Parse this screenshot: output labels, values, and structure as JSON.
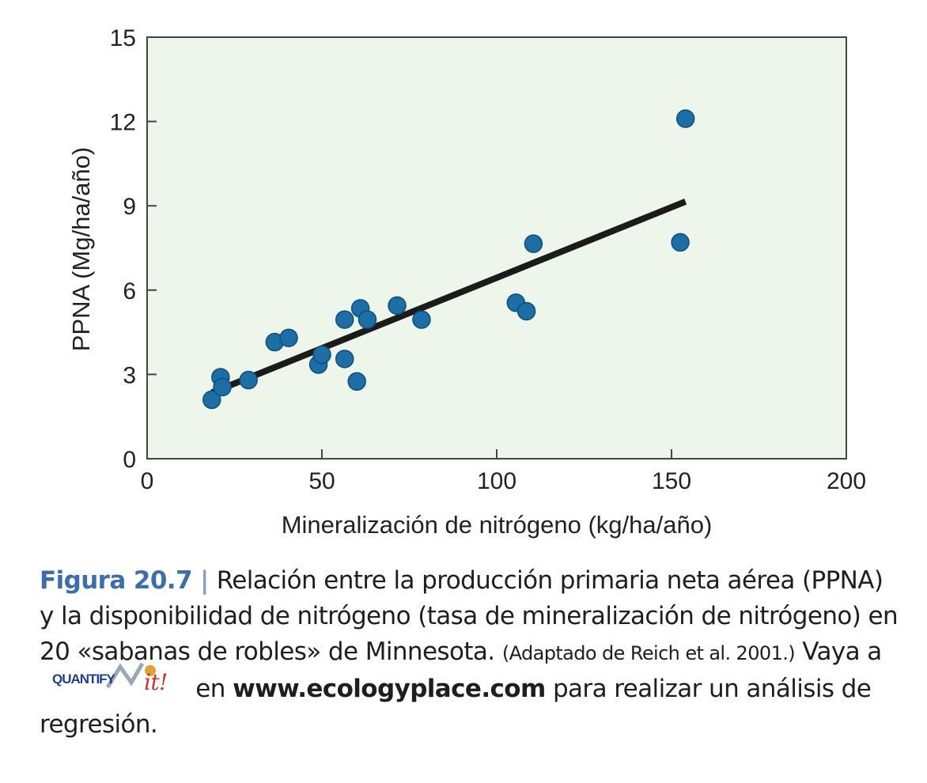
{
  "chart_data": {
    "type": "scatter",
    "xlabel": "Mineralización de nitrógeno (kg/ha/año)",
    "ylabel": "PPNA (Mg/ha/año)",
    "xlim": [
      0,
      200
    ],
    "ylim": [
      0,
      15
    ],
    "xticks": [
      0,
      50,
      100,
      150,
      200
    ],
    "yticks": [
      0,
      3,
      6,
      9,
      12,
      15
    ],
    "grid": false,
    "points": [
      {
        "x": 18.5,
        "y": 2.1
      },
      {
        "x": 21,
        "y": 2.9
      },
      {
        "x": 21.5,
        "y": 2.55
      },
      {
        "x": 29,
        "y": 2.8
      },
      {
        "x": 36.5,
        "y": 4.15
      },
      {
        "x": 40.5,
        "y": 4.3
      },
      {
        "x": 49,
        "y": 3.35
      },
      {
        "x": 50,
        "y": 3.7
      },
      {
        "x": 56.5,
        "y": 3.55
      },
      {
        "x": 56.5,
        "y": 4.95
      },
      {
        "x": 60,
        "y": 2.75
      },
      {
        "x": 61,
        "y": 5.35
      },
      {
        "x": 63,
        "y": 4.95
      },
      {
        "x": 71.5,
        "y": 5.45
      },
      {
        "x": 78.5,
        "y": 4.95
      },
      {
        "x": 105.5,
        "y": 5.55
      },
      {
        "x": 108.5,
        "y": 5.25
      },
      {
        "x": 110.5,
        "y": 7.65
      },
      {
        "x": 152.5,
        "y": 7.7
      },
      {
        "x": 154,
        "y": 12.1
      }
    ],
    "trendline": {
      "x": [
        18.5,
        154
      ],
      "y": [
        2.35,
        9.15
      ]
    },
    "colors": {
      "plot_bg": "#eef5ea",
      "point": "#1c6ea4",
      "point_edge": "#0f4f7e",
      "line": "#1b1b1b",
      "axis": "#444444"
    }
  },
  "caption": {
    "figure_label": "Figura 20.7",
    "separator": "|",
    "main_text": "Relación entre la producción primaria neta aérea (PPNA) y la disponibilidad de nitrógeno (tasa de mineralización de nitrógeno) en 20 «sabanas de robles» de Minnesota.",
    "source_text": "(Adaptado de Reich et al. 2001.)",
    "go_to": "Vaya a",
    "logo_word": "QUANTIFY",
    "logo_it": "it!",
    "on": "en",
    "url": "www.ecologyplace.com",
    "rest": "para realizar un análisis de regresión."
  }
}
